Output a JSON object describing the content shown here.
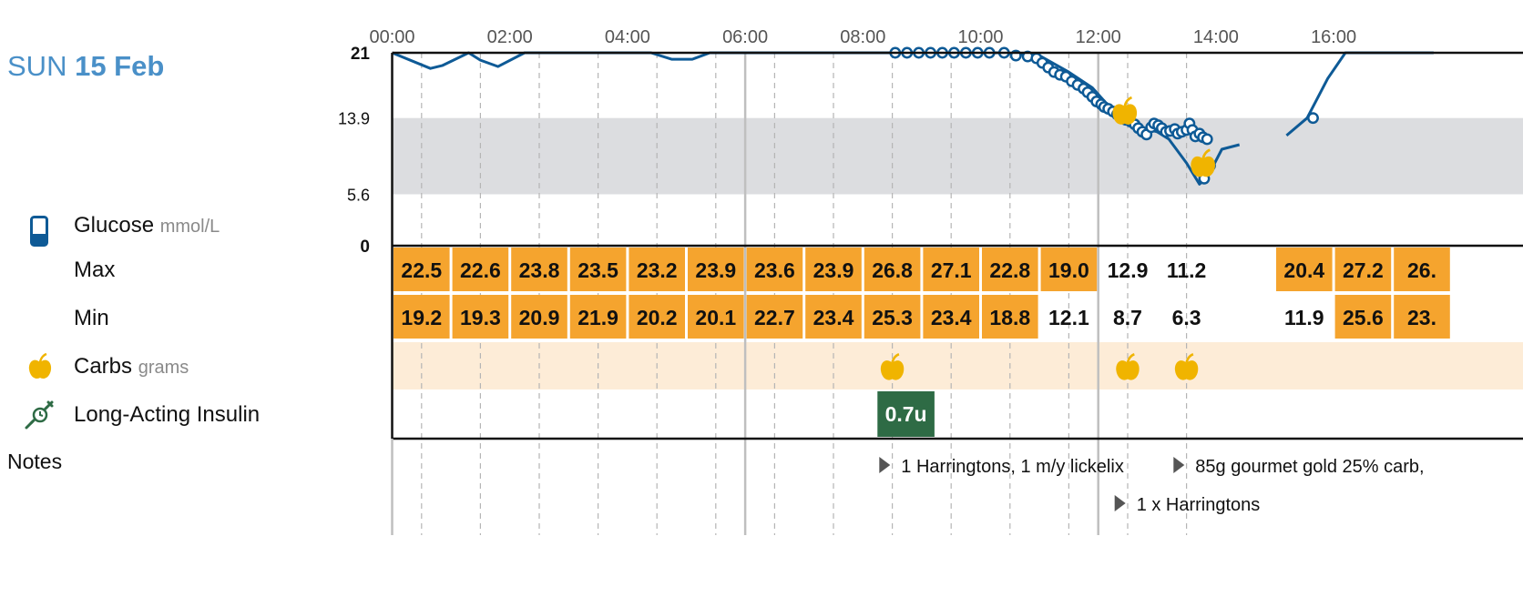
{
  "day": {
    "weekday": "SUN",
    "date": "15 Feb"
  },
  "legend": {
    "glucose_label": "Glucose",
    "glucose_unit": "mmol/L",
    "max_label": "Max",
    "min_label": "Min",
    "carbs_label": "Carbs",
    "carbs_unit": "grams",
    "insulin_label": "Long-Acting Insulin",
    "notes_label": "Notes"
  },
  "colors": {
    "glucose_line": "#0e5a96",
    "target_band": "#dcdde0",
    "cell_orange": "#f5a42e",
    "carbs_band": "#fdecd7",
    "carbs_icon": "#f0b400",
    "insulin": "#2e6b45",
    "accent_title": "#4a90c8"
  },
  "chart_data": {
    "type": "line",
    "x_axis": {
      "tick_labels": [
        "00:00",
        "02:00",
        "04:00",
        "06:00",
        "08:00",
        "10:00",
        "12:00",
        "14:00",
        "16:00"
      ],
      "range_hours": [
        0,
        17.7
      ]
    },
    "y_axis": {
      "tick_labels": [
        "21",
        "13.9",
        "5.6",
        "0"
      ],
      "ticks": [
        21,
        13.9,
        5.6,
        0
      ],
      "range": [
        0,
        21
      ],
      "unit": "mmol/L"
    },
    "target_range": [
      5.6,
      13.9
    ],
    "sensor_segments": [
      [
        [
          0.0,
          21.0
        ],
        [
          0.65,
          19.3
        ],
        [
          0.85,
          19.6
        ],
        [
          1.3,
          21.0
        ],
        [
          1.5,
          20.2
        ],
        [
          1.8,
          19.5
        ],
        [
          2.25,
          21.0
        ],
        [
          4.4,
          21.0
        ],
        [
          4.75,
          20.3
        ],
        [
          5.1,
          20.3
        ],
        [
          5.4,
          21.0
        ],
        [
          10.3,
          21.0
        ],
        [
          11.0,
          20.7
        ],
        [
          11.5,
          18.9
        ],
        [
          11.9,
          17.2
        ],
        [
          12.15,
          15.4
        ],
        [
          12.4,
          14.0
        ],
        [
          12.75,
          12.8
        ],
        [
          13.0,
          12.4
        ],
        [
          13.2,
          11.6
        ],
        [
          13.5,
          9.0
        ],
        [
          13.72,
          6.7
        ],
        [
          13.85,
          7.4
        ],
        [
          14.1,
          10.5
        ],
        [
          14.4,
          11.0
        ]
      ],
      [
        [
          15.2,
          12.0
        ],
        [
          15.55,
          13.9
        ],
        [
          15.9,
          18.2
        ],
        [
          16.2,
          21.0
        ],
        [
          17.7,
          21.0
        ]
      ]
    ],
    "fingerstick_points": [
      [
        8.55,
        21.0
      ],
      [
        8.75,
        21.0
      ],
      [
        8.95,
        21.0
      ],
      [
        9.15,
        21.0
      ],
      [
        9.35,
        21.0
      ],
      [
        9.55,
        21.0
      ],
      [
        9.75,
        21.0
      ],
      [
        9.95,
        21.0
      ],
      [
        10.15,
        21.0
      ],
      [
        10.4,
        21.0
      ],
      [
        10.6,
        20.7
      ],
      [
        10.8,
        20.6
      ],
      [
        10.95,
        20.4
      ],
      [
        11.05,
        19.9
      ],
      [
        11.15,
        19.4
      ],
      [
        11.25,
        18.9
      ],
      [
        11.35,
        18.6
      ],
      [
        11.45,
        18.4
      ],
      [
        11.55,
        17.9
      ],
      [
        11.65,
        17.5
      ],
      [
        11.75,
        17.1
      ],
      [
        11.82,
        16.7
      ],
      [
        11.9,
        16.2
      ],
      [
        11.97,
        15.7
      ],
      [
        12.05,
        15.4
      ],
      [
        12.1,
        15.1
      ],
      [
        12.17,
        14.9
      ],
      [
        12.25,
        14.6
      ],
      [
        12.32,
        14.3
      ],
      [
        12.4,
        14.0
      ],
      [
        12.47,
        13.7
      ],
      [
        12.55,
        13.5
      ],
      [
        12.62,
        13.2
      ],
      [
        12.68,
        12.8
      ],
      [
        12.75,
        12.4
      ],
      [
        12.82,
        12.1
      ],
      [
        12.9,
        12.9
      ],
      [
        12.95,
        13.3
      ],
      [
        13.02,
        13.1
      ],
      [
        13.08,
        12.8
      ],
      [
        13.15,
        12.4
      ],
      [
        13.22,
        12.5
      ],
      [
        13.3,
        12.7
      ],
      [
        13.35,
        12.2
      ],
      [
        13.42,
        12.4
      ],
      [
        13.5,
        12.6
      ],
      [
        13.55,
        13.3
      ],
      [
        13.6,
        12.6
      ],
      [
        13.65,
        11.9
      ],
      [
        13.72,
        12.2
      ],
      [
        13.78,
        11.8
      ],
      [
        13.85,
        11.6
      ],
      [
        13.75,
        8.3
      ],
      [
        13.8,
        7.3
      ],
      [
        13.9,
        8.7
      ],
      [
        15.65,
        13.9
      ]
    ],
    "carb_markers_chart": [
      [
        12.45,
        14.5
      ],
      [
        13.78,
        8.8
      ]
    ],
    "buckets": [
      {
        "max": "22.5",
        "min": "19.2",
        "max_high": true,
        "min_high": true
      },
      {
        "max": "22.6",
        "min": "19.3",
        "max_high": true,
        "min_high": true
      },
      {
        "max": "23.8",
        "min": "20.9",
        "max_high": true,
        "min_high": true
      },
      {
        "max": "23.5",
        "min": "21.9",
        "max_high": true,
        "min_high": true
      },
      {
        "max": "23.2",
        "min": "20.2",
        "max_high": true,
        "min_high": true
      },
      {
        "max": "23.9",
        "min": "20.1",
        "max_high": true,
        "min_high": true
      },
      {
        "max": "23.6",
        "min": "22.7",
        "max_high": true,
        "min_high": true
      },
      {
        "max": "23.9",
        "min": "23.4",
        "max_high": true,
        "min_high": true
      },
      {
        "max": "26.8",
        "min": "25.3",
        "max_high": true,
        "min_high": true
      },
      {
        "max": "27.1",
        "min": "23.4",
        "max_high": true,
        "min_high": true
      },
      {
        "max": "22.8",
        "min": "18.8",
        "max_high": true,
        "min_high": true
      },
      {
        "max": "19.0",
        "min": "12.1",
        "max_high": true,
        "min_high": false
      },
      {
        "max": "12.9",
        "min": "8.7",
        "max_high": false,
        "min_high": false
      },
      {
        "max": "11.2",
        "min": "6.3",
        "max_high": false,
        "min_high": false
      },
      {
        "max": "",
        "min": "",
        "max_high": false,
        "min_high": false
      },
      {
        "max": "20.4",
        "min": "11.9",
        "max_high": true,
        "min_high": false
      },
      {
        "max": "27.2",
        "min": "25.6",
        "max_high": true,
        "min_high": true
      },
      {
        "max": "26.",
        "min": "23.",
        "max_high": true,
        "min_high": true
      }
    ],
    "carb_row_buckets": [
      8,
      12,
      13
    ],
    "insulin": [
      {
        "bucket": 8,
        "label": "0.7u"
      }
    ],
    "notes": [
      {
        "hour": 8.0,
        "row": 0,
        "text": "1 Harringtons, 1 m/y lickelix"
      },
      {
        "hour": 13.0,
        "row": 0,
        "text": "85g gourmet gold 25% carb,"
      },
      {
        "hour": 12.0,
        "row": 1,
        "text": "1 x Harringtons"
      }
    ]
  }
}
